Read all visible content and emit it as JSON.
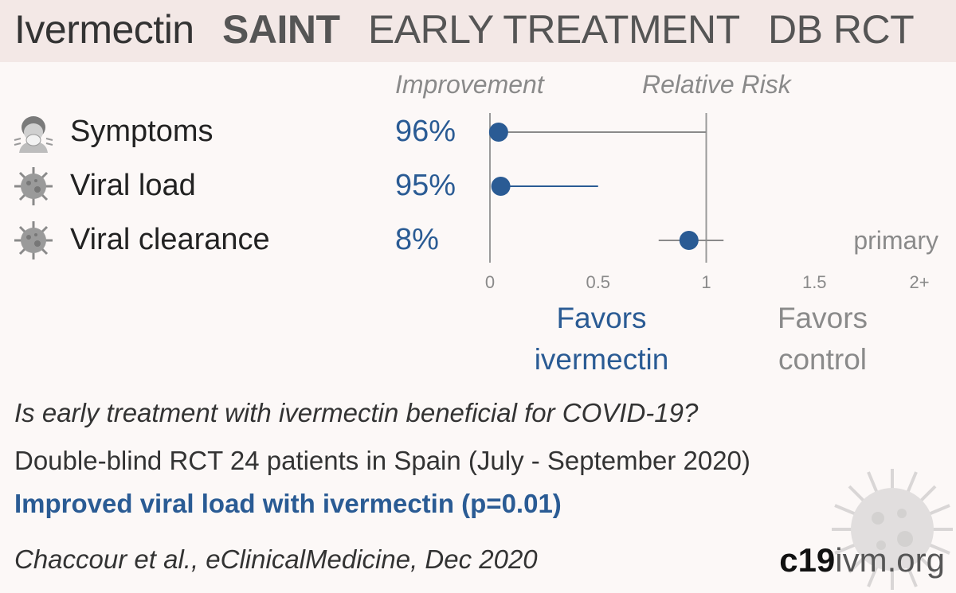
{
  "header": {
    "treatment": "Ivermectin",
    "trial": "SAINT",
    "stage": "EARLY TREATMENT",
    "design": "DB RCT"
  },
  "columns": {
    "improvement": "Improvement",
    "relative_risk": "Relative Risk"
  },
  "chart_data": {
    "type": "scatter",
    "title": "",
    "xlabel": "",
    "xlim": [
      0,
      2
    ],
    "xticks": [
      "0",
      "0.5",
      "1",
      "1.5",
      "2+"
    ],
    "xtick_values": [
      0,
      0.5,
      1,
      1.5,
      2
    ],
    "reference_line": 1,
    "rows": [
      {
        "label": "Symptoms",
        "icon": "sick-person-icon",
        "improvement": "96%",
        "rr": 0.04,
        "ci_low": 0.0,
        "ci_high": 1.0,
        "note": ""
      },
      {
        "label": "Viral load",
        "icon": "virus-icon",
        "improvement": "95%",
        "rr": 0.05,
        "ci_low": 0.05,
        "ci_high": 0.5,
        "note": ""
      },
      {
        "label": "Viral clearance",
        "icon": "virus-icon",
        "improvement": "8%",
        "rr": 0.92,
        "ci_low": 0.78,
        "ci_high": 1.08,
        "note": "primary"
      }
    ],
    "colors": {
      "point": "#2a5b94",
      "ci_favor": "#2a5b94",
      "ci_neutral": "#8a8a8a",
      "axis": "#9a9a9a"
    }
  },
  "favors": {
    "left_line1": "Favors",
    "left_line2": "ivermectin",
    "right_line1": "Favors",
    "right_line2": "control"
  },
  "summary": {
    "question": "Is early treatment with ivermectin beneficial for COVID-19?",
    "details": "Double-blind RCT 24 patients in Spain (July - September 2020)",
    "result": "Improved viral load with ivermectin (p=0.01)",
    "citation": "Chaccour et al., eClinicalMedicine, Dec 2020"
  },
  "brand": {
    "part1": "c19",
    "part2": "ivm.org"
  }
}
